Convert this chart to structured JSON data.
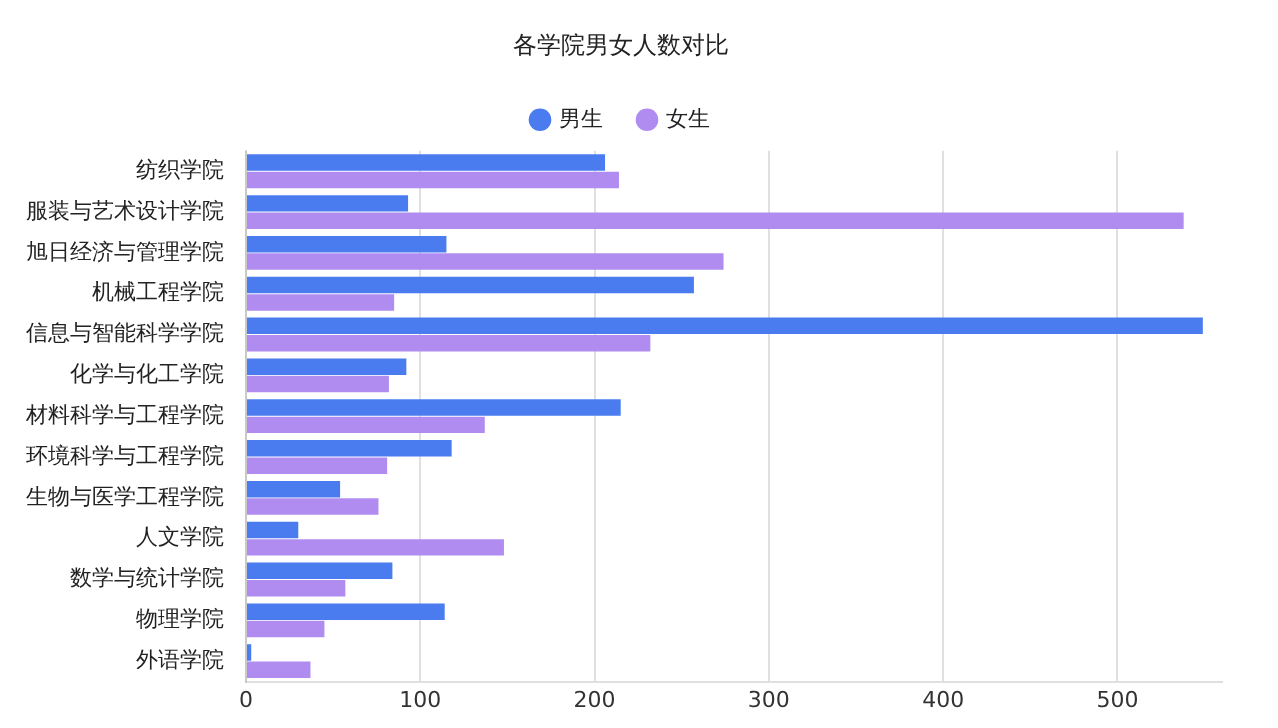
{
  "chart_data": {
    "type": "bar",
    "orientation": "horizontal",
    "title": "各学院男女人数对比",
    "categories": [
      "纺织学院",
      "服装与艺术设计学院",
      "旭日经济与管理学院",
      "机械工程学院",
      "信息与智能科学学院",
      "化学与化工学院",
      "材料科学与工程学院",
      "环境科学与工程学院",
      "生物与医学工程学院",
      "人文学院",
      "数学与统计学院",
      "物理学院",
      "外语学院"
    ],
    "series": [
      {
        "name": "男生",
        "color": "#4a7cf0",
        "values": [
          206,
          93,
          115,
          257,
          549,
          92,
          215,
          118,
          54,
          30,
          84,
          114,
          3
        ]
      },
      {
        "name": "女生",
        "color": "#b08cf0",
        "values": [
          214,
          538,
          274,
          85,
          232,
          82,
          137,
          81,
          76,
          148,
          57,
          45,
          37
        ]
      }
    ],
    "xlim": [
      0,
      560
    ],
    "xticks": [
      0,
      100,
      200,
      300,
      400,
      500
    ],
    "grid": "x",
    "legend": "top"
  }
}
